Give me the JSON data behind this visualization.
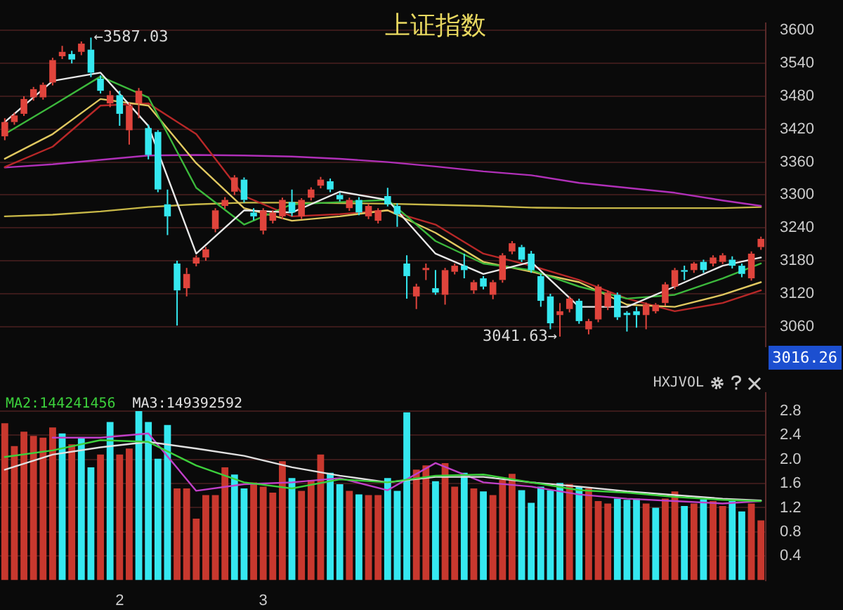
{
  "chart_data": [
    {
      "type": "candlestick",
      "title": "上证指数",
      "categories": [
        null,
        null,
        null,
        null,
        null,
        null,
        null,
        null,
        null,
        null,
        null,
        null,
        null,
        null,
        null,
        null,
        null,
        null,
        null,
        null,
        null,
        null,
        null,
        null,
        null,
        null,
        null,
        null,
        null,
        null,
        null,
        null,
        null,
        null,
        null,
        null,
        null,
        null,
        null,
        null,
        null,
        null,
        null,
        null,
        null,
        null,
        null,
        null,
        null,
        null,
        null,
        null,
        null,
        null,
        null,
        null,
        null,
        null,
        null,
        null,
        null,
        null,
        null,
        null,
        null,
        null,
        null,
        null,
        null,
        null,
        null,
        null,
        null,
        null,
        null,
        null,
        null,
        null,
        null,
        null
      ],
      "ohlc": [
        [
          3407,
          3440,
          3400,
          3433
        ],
        [
          3433,
          3450,
          3428,
          3445
        ],
        [
          3448,
          3480,
          3444,
          3475
        ],
        [
          3478,
          3497,
          3472,
          3493
        ],
        [
          3478,
          3505,
          3474,
          3501
        ],
        [
          3505,
          3550,
          3500,
          3546
        ],
        [
          3553,
          3572,
          3548,
          3561
        ],
        [
          3557,
          3563,
          3540,
          3547
        ],
        [
          3561,
          3580,
          3555,
          3576
        ],
        [
          3565,
          3587.03,
          3515,
          3523
        ],
        [
          3512,
          3518,
          3485,
          3490
        ],
        [
          3467,
          3490,
          3460,
          3482
        ],
        [
          3482,
          3490,
          3426,
          3448
        ],
        [
          3418,
          3468,
          3392,
          3463
        ],
        [
          3467,
          3495,
          3440,
          3490
        ],
        [
          3422,
          3428,
          3365,
          3373
        ],
        [
          3415,
          3418,
          3305,
          3310
        ],
        [
          3283,
          3310,
          3227,
          3261
        ],
        [
          3175,
          3180,
          3062,
          3126
        ],
        [
          3130,
          3167,
          3115,
          3156
        ],
        [
          3175,
          3190,
          3170,
          3186
        ],
        [
          3186,
          3205,
          3180,
          3201
        ],
        [
          3238,
          3276,
          3232,
          3272
        ],
        [
          3280,
          3296,
          3275,
          3291
        ],
        [
          3306,
          3336,
          3300,
          3332
        ],
        [
          3328,
          3332,
          3286,
          3291
        ],
        [
          3268,
          3276,
          3254,
          3261
        ],
        [
          3235,
          3276,
          3228,
          3272
        ],
        [
          3253,
          3272,
          3248,
          3268
        ],
        [
          3261,
          3295,
          3256,
          3291
        ],
        [
          3287,
          3310,
          3261,
          3268
        ],
        [
          3261,
          3294,
          3256,
          3291
        ],
        [
          3295,
          3314,
          3290,
          3310
        ],
        [
          3317,
          3333,
          3312,
          3328
        ],
        [
          3325,
          3330,
          3305,
          3310
        ],
        [
          3300,
          3304,
          3288,
          3292
        ],
        [
          3276,
          3295,
          3271,
          3291
        ],
        [
          3291,
          3296,
          3263,
          3268
        ],
        [
          3261,
          3284,
          3256,
          3280
        ],
        [
          3253,
          3276,
          3248,
          3272
        ],
        [
          3298,
          3313,
          3279,
          3283
        ],
        [
          3280,
          3285,
          3242,
          3265
        ],
        [
          3175,
          3190,
          3111,
          3152
        ],
        [
          3115,
          3138,
          3092,
          3133
        ],
        [
          3163,
          3175,
          3145,
          3167
        ],
        [
          3130,
          3163,
          3118,
          3122
        ],
        [
          3118,
          3167,
          3100,
          3163
        ],
        [
          3160,
          3175,
          3155,
          3171
        ],
        [
          3171,
          3193,
          3148,
          3163
        ],
        [
          3126,
          3145,
          3120,
          3141
        ],
        [
          3148,
          3152,
          3128,
          3133
        ],
        [
          3118,
          3145,
          3110,
          3141
        ],
        [
          3145,
          3194,
          3140,
          3190
        ],
        [
          3197,
          3216,
          3192,
          3212
        ],
        [
          3205,
          3209,
          3178,
          3182
        ],
        [
          3193,
          3198,
          3158,
          3163
        ],
        [
          3152,
          3156,
          3096,
          3107
        ],
        [
          3115,
          3120,
          3055,
          3066
        ],
        [
          3081,
          3103,
          3041.63,
          3088
        ],
        [
          3092,
          3115,
          3086,
          3111
        ],
        [
          3107,
          3111,
          3065,
          3070
        ],
        [
          3055,
          3074,
          3046,
          3070
        ],
        [
          3073,
          3137,
          3068,
          3133
        ],
        [
          3096,
          3126,
          3090,
          3122
        ],
        [
          3118,
          3122,
          3072,
          3077
        ],
        [
          3085,
          3088,
          3051,
          3081
        ],
        [
          3088,
          3096,
          3058,
          3081
        ],
        [
          3081,
          3104,
          3055,
          3100
        ],
        [
          3088,
          3103,
          3084,
          3100
        ],
        [
          3103,
          3141,
          3098,
          3137
        ],
        [
          3133,
          3167,
          3128,
          3163
        ],
        [
          3163,
          3171,
          3145,
          3160
        ],
        [
          3163,
          3178,
          3158,
          3175
        ],
        [
          3178,
          3182,
          3158,
          3163
        ],
        [
          3175,
          3190,
          3170,
          3186
        ],
        [
          3178,
          3194,
          3174,
          3190
        ],
        [
          3182,
          3188,
          3166,
          3171
        ],
        [
          3171,
          3175,
          3150,
          3156
        ],
        [
          3148,
          3197,
          3144,
          3193
        ],
        [
          3205,
          3224,
          3200,
          3220
        ]
      ],
      "colors": [
        "#e0443c",
        "#e0443c",
        "#e0443c",
        "#e0443c",
        "#e0443c",
        "#e0443c",
        "#e0443c",
        "#35e8f0",
        "#e0443c",
        "#35e8f0",
        "#35e8f0",
        "#e0443c",
        "#35e8f0",
        "#e0443c",
        "#e0443c",
        "#35e8f0",
        "#35e8f0",
        "#35e8f0",
        "#35e8f0",
        "#e0443c",
        "#e0443c",
        "#e0443c",
        "#e0443c",
        "#e0443c",
        "#e0443c",
        "#35e8f0",
        "#35e8f0",
        "#e0443c",
        "#e0443c",
        "#e0443c",
        "#35e8f0",
        "#e0443c",
        "#e0443c",
        "#e0443c",
        "#35e8f0",
        "#35e8f0",
        "#e0443c",
        "#35e8f0",
        "#e0443c",
        "#e0443c",
        "#35e8f0",
        "#35e8f0",
        "#35e8f0",
        "#e0443c",
        "#e0443c",
        "#35e8f0",
        "#e0443c",
        "#e0443c",
        "#35e8f0",
        "#e0443c",
        "#35e8f0",
        "#e0443c",
        "#e0443c",
        "#e0443c",
        "#35e8f0",
        "#35e8f0",
        "#35e8f0",
        "#35e8f0",
        "#e0443c",
        "#e0443c",
        "#35e8f0",
        "#e0443c",
        "#e0443c",
        "#e0443c",
        "#35e8f0",
        "#35e8f0",
        "#35e8f0",
        "#e0443c",
        "#e0443c",
        "#e0443c",
        "#e0443c",
        "#35e8f0",
        "#e0443c",
        "#35e8f0",
        "#e0443c",
        "#e0443c",
        "#35e8f0",
        "#35e8f0",
        "#e0443c",
        "#e0443c"
      ],
      "series": [
        {
          "type": "line",
          "color": "#e8e8e8",
          "values": [
            3433,
            null,
            null,
            null,
            null,
            3508,
            null,
            null,
            null,
            null,
            3523,
            null,
            null,
            null,
            null,
            3426,
            null,
            null,
            null,
            null,
            3193,
            null,
            null,
            null,
            null,
            3272,
            null,
            null,
            null,
            null,
            3268,
            null,
            null,
            null,
            null,
            3306,
            null,
            null,
            null,
            null,
            3291,
            null,
            null,
            null,
            null,
            3193,
            null,
            null,
            null,
            null,
            3156,
            null,
            null,
            null,
            null,
            3178,
            null,
            null,
            null,
            null,
            3096,
            null,
            null,
            null,
            null,
            3096,
            null,
            null,
            null,
            null,
            3133,
            null,
            null,
            null,
            null,
            3171,
            null,
            null,
            null,
            3186
          ]
        },
        {
          "type": "line",
          "color": "#3cb83c",
          "values": [
            3411,
            null,
            null,
            null,
            null,
            3463,
            null,
            null,
            null,
            null,
            3516,
            null,
            null,
            null,
            null,
            3478,
            null,
            null,
            null,
            null,
            3313,
            null,
            null,
            null,
            null,
            3246,
            null,
            null,
            null,
            null,
            3283,
            null,
            null,
            null,
            null,
            3287,
            null,
            null,
            null,
            null,
            3291,
            null,
            null,
            null,
            null,
            3216,
            null,
            null,
            null,
            null,
            3175,
            null,
            null,
            null,
            null,
            3163,
            null,
            null,
            null,
            null,
            3133,
            null,
            null,
            null,
            null,
            3111,
            null,
            null,
            null,
            null,
            3118,
            null,
            null,
            null,
            null,
            3148,
            null,
            null,
            null,
            3175
          ]
        },
        {
          "type": "line",
          "color": "#e0c860",
          "values": [
            3366,
            null,
            null,
            null,
            null,
            3411,
            null,
            null,
            null,
            null,
            3475,
            null,
            null,
            null,
            null,
            3463,
            null,
            null,
            null,
            null,
            3358,
            null,
            null,
            null,
            null,
            3276,
            null,
            null,
            null,
            null,
            3253,
            null,
            null,
            null,
            null,
            3261,
            null,
            null,
            null,
            null,
            3272,
            null,
            null,
            null,
            null,
            3231,
            null,
            null,
            null,
            null,
            3178,
            null,
            null,
            null,
            null,
            3160,
            null,
            null,
            null,
            null,
            3141,
            null,
            null,
            null,
            null,
            3100,
            null,
            null,
            null,
            null,
            3096,
            null,
            null,
            null,
            null,
            3118,
            null,
            null,
            null,
            3141
          ]
        },
        {
          "type": "line",
          "color": "#b82828",
          "values": [
            3351,
            null,
            null,
            null,
            null,
            3388,
            null,
            null,
            null,
            null,
            3463,
            null,
            null,
            null,
            null,
            3467,
            null,
            null,
            null,
            null,
            3411,
            null,
            null,
            null,
            null,
            3298,
            null,
            null,
            null,
            null,
            3261,
            null,
            null,
            null,
            null,
            3265,
            null,
            null,
            null,
            null,
            3272,
            null,
            null,
            null,
            null,
            3246,
            null,
            null,
            null,
            null,
            3193,
            null,
            null,
            null,
            null,
            3171,
            null,
            null,
            null,
            null,
            3145,
            null,
            null,
            null,
            null,
            3111,
            null,
            null,
            null,
            null,
            3088,
            null,
            null,
            null,
            null,
            3103,
            null,
            null,
            null,
            3126
          ]
        },
        {
          "type": "line",
          "color": "#b030b8",
          "values": [
            3350,
            null,
            null,
            null,
            null,
            3356,
            null,
            null,
            null,
            null,
            3364,
            null,
            null,
            null,
            null,
            3372,
            null,
            null,
            null,
            null,
            3373,
            null,
            null,
            null,
            null,
            3372,
            null,
            null,
            null,
            null,
            3370,
            null,
            null,
            null,
            null,
            3366,
            null,
            null,
            null,
            null,
            3360,
            null,
            null,
            null,
            null,
            3352,
            null,
            null,
            null,
            null,
            3343,
            null,
            null,
            null,
            null,
            3336,
            null,
            null,
            null,
            null,
            3322,
            null,
            null,
            null,
            null,
            3313,
            null,
            null,
            null,
            null,
            3304,
            null,
            null,
            null,
            null,
            3290,
            null,
            null,
            null,
            3280
          ]
        },
        {
          "type": "line",
          "color": "#c8b848",
          "values": [
            3261,
            null,
            null,
            null,
            null,
            3264,
            null,
            null,
            null,
            null,
            3270,
            null,
            null,
            null,
            null,
            3278,
            null,
            null,
            null,
            null,
            3283,
            null,
            null,
            null,
            null,
            3286,
            null,
            null,
            null,
            null,
            3286,
            null,
            null,
            null,
            null,
            3285,
            null,
            null,
            null,
            null,
            3284,
            null,
            null,
            null,
            null,
            3282,
            null,
            null,
            null,
            null,
            3280,
            null,
            null,
            null,
            null,
            3277,
            null,
            null,
            null,
            null,
            3276,
            null,
            null,
            null,
            null,
            3276,
            null,
            null,
            null,
            null,
            3276,
            null,
            null,
            null,
            null,
            3276,
            null,
            null,
            null,
            3278
          ]
        }
      ],
      "ylim": [
        3024,
        3613
      ],
      "yticks": [
        3060,
        3120,
        3180,
        3240,
        3300,
        3360,
        3420,
        3480,
        3540,
        3600
      ],
      "grid": "y",
      "tick_labels": "y",
      "annotations": [
        "←3587.03",
        "3041.63→",
        "3016.26"
      ]
    },
    {
      "type": "bar",
      "categories": [
        null,
        null,
        null,
        null,
        null,
        null,
        null,
        null,
        null,
        null,
        null,
        null,
        "2",
        null,
        null,
        null,
        null,
        null,
        null,
        null,
        null,
        null,
        null,
        null,
        null,
        null,
        null,
        "3",
        null,
        null,
        null,
        null,
        null,
        null,
        null,
        null,
        null,
        null,
        null,
        null,
        null,
        null,
        null,
        null,
        null,
        null,
        null,
        null,
        null,
        null,
        null,
        null,
        null,
        null,
        null,
        null,
        null,
        null,
        null,
        null,
        null,
        null,
        null,
        null,
        null,
        null,
        null,
        null,
        null,
        null,
        null,
        null,
        null,
        null,
        null,
        null,
        null,
        null,
        null,
        null
      ],
      "series": [
        {
          "type": "bar",
          "values": [
            2.6,
            2.22,
            2.46,
            2.39,
            2.36,
            2.53,
            2.43,
            2.25,
            2.36,
            1.87,
            2.08,
            2.62,
            2.08,
            2.18,
            2.8,
            2.62,
            2.01,
            2.57,
            1.52,
            1.52,
            1.02,
            1.41,
            1.41,
            1.87,
            1.75,
            1.52,
            1.62,
            1.55,
            1.45,
            1.97,
            1.69,
            1.48,
            1.66,
            2.08,
            1.78,
            1.59,
            1.48,
            1.42,
            1.41,
            1.41,
            1.69,
            1.48,
            2.78,
            1.83,
            1.9,
            1.64,
            1.94,
            1.55,
            1.78,
            1.52,
            1.47,
            1.41,
            1.66,
            1.76,
            1.49,
            1.28,
            1.55,
            1.49,
            1.61,
            1.59,
            1.55,
            1.52,
            1.31,
            1.27,
            1.35,
            1.33,
            1.35,
            1.27,
            1.2,
            1.35,
            1.47,
            1.23,
            1.27,
            1.34,
            1.31,
            1.23,
            1.31,
            1.14,
            1.27,
            0.99
          ],
          "colors": [
            "#c8382e",
            "#c8382e",
            "#c8382e",
            "#c8382e",
            "#c8382e",
            "#c8382e",
            "#35e8f0",
            "#c8382e",
            "#35e8f0",
            "#35e8f0",
            "#c8382e",
            "#35e8f0",
            "#c8382e",
            "#c8382e",
            "#35e8f0",
            "#35e8f0",
            "#35e8f0",
            "#35e8f0",
            "#c8382e",
            "#c8382e",
            "#c8382e",
            "#c8382e",
            "#c8382e",
            "#c8382e",
            "#35e8f0",
            "#35e8f0",
            "#c8382e",
            "#c8382e",
            "#c8382e",
            "#c8382e",
            "#35e8f0",
            "#c8382e",
            "#c8382e",
            "#c8382e",
            "#35e8f0",
            "#35e8f0",
            "#c8382e",
            "#35e8f0",
            "#c8382e",
            "#c8382e",
            "#35e8f0",
            "#35e8f0",
            "#35e8f0",
            "#c8382e",
            "#c8382e",
            "#35e8f0",
            "#c8382e",
            "#c8382e",
            "#35e8f0",
            "#c8382e",
            "#35e8f0",
            "#c8382e",
            "#c8382e",
            "#c8382e",
            "#35e8f0",
            "#35e8f0",
            "#35e8f0",
            "#35e8f0",
            "#35e8f0",
            "#c8382e",
            "#35e8f0",
            "#c8382e",
            "#c8382e",
            "#c8382e",
            "#35e8f0",
            "#35e8f0",
            "#35e8f0",
            "#c8382e",
            "#35e8f0",
            "#c8382e",
            "#c8382e",
            "#35e8f0",
            "#c8382e",
            "#35e8f0",
            "#c8382e",
            "#c8382e",
            "#35e8f0",
            "#35e8f0",
            "#c8382e",
            "#c8382e"
          ]
        },
        {
          "type": "line",
          "name": "MA2:144241456",
          "color": "#3cd03c",
          "values": [
            2.04,
            null,
            null,
            null,
            null,
            2.15,
            null,
            null,
            null,
            null,
            2.32,
            null,
            null,
            null,
            null,
            2.29,
            null,
            null,
            null,
            null,
            1.9,
            null,
            null,
            null,
            null,
            1.62,
            null,
            null,
            null,
            null,
            1.52,
            null,
            null,
            null,
            null,
            1.67,
            null,
            null,
            null,
            null,
            1.62,
            null,
            null,
            null,
            null,
            1.73,
            null,
            null,
            null,
            null,
            1.75,
            null,
            null,
            null,
            null,
            1.62,
            null,
            null,
            null,
            null,
            1.49,
            null,
            null,
            null,
            null,
            1.45,
            null,
            null,
            null,
            null,
            1.38,
            null,
            null,
            null,
            null,
            1.33,
            null,
            null,
            null,
            1.31
          ]
        },
        {
          "type": "line",
          "name": "MA3:149392592",
          "color": "#e0e0e0",
          "values": [
            1.83,
            null,
            null,
            null,
            null,
            2.08,
            null,
            null,
            null,
            null,
            2.2,
            null,
            null,
            null,
            null,
            2.29,
            null,
            null,
            null,
            null,
            2.18,
            null,
            null,
            null,
            null,
            2.06,
            null,
            null,
            null,
            null,
            1.87,
            null,
            null,
            null,
            null,
            1.73,
            null,
            null,
            null,
            null,
            1.62,
            null,
            null,
            null,
            null,
            1.71,
            null,
            null,
            null,
            null,
            1.71,
            null,
            null,
            null,
            null,
            1.62,
            null,
            null,
            null,
            null,
            1.55,
            null,
            null,
            null,
            null,
            1.47,
            null,
            null,
            null,
            null,
            1.41,
            null,
            null,
            null,
            null,
            1.35,
            null,
            null,
            null,
            1.32
          ]
        },
        {
          "type": "line",
          "color": "#c040c8",
          "values": [
            null,
            null,
            null,
            null,
            null,
            2.36,
            null,
            null,
            null,
            null,
            2.36,
            null,
            null,
            null,
            null,
            2.43,
            null,
            null,
            null,
            null,
            1.48,
            null,
            null,
            null,
            null,
            1.59,
            null,
            null,
            null,
            null,
            1.62,
            null,
            null,
            null,
            null,
            1.69,
            null,
            null,
            null,
            null,
            1.49,
            null,
            null,
            null,
            null,
            1.94,
            null,
            null,
            null,
            null,
            1.62,
            null,
            null,
            null,
            null,
            1.55,
            null,
            null,
            null,
            null,
            1.42,
            null,
            null,
            null,
            null,
            1.35,
            null,
            null,
            null,
            null,
            1.31,
            null,
            null,
            null,
            null,
            1.27,
            null,
            null,
            null,
            1.31
          ]
        }
      ],
      "ylim": [
        0,
        3.1
      ],
      "yticks": [
        0.4,
        0.8,
        1.2,
        {
          "value": 1.6,
          "label": "1.6"
        },
        {
          "value": 2,
          "label": "2.0"
        },
        2.4,
        2.8
      ],
      "grid": "y",
      "legend": "top left",
      "annotations": [
        "HXJVOL"
      ]
    }
  ]
}
